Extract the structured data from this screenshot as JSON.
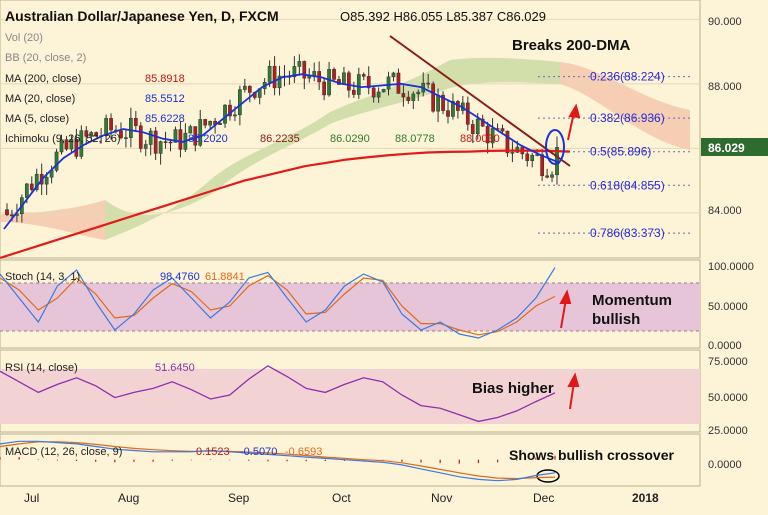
{
  "header": {
    "symbol": "Australian Dollar/Japanese Yen, D, FXCM",
    "ohlc": "O85.392  H86.055  L85.387  C86.029",
    "vol_label": "Vol (20)",
    "bb_label": "BB (20, close, 2)",
    "ma200_label": "MA (200, close)",
    "ma20_label": "MA (20, close)",
    "ma5_label": "MA (5, close)",
    "ichimoku_label": "Ichimoku (9, 26, 52, 26)"
  },
  "indicator_values": {
    "ma200": "85.8918",
    "ma20": "85.5512",
    "ma5": "85.6228",
    "ichimoku": [
      "85.2020",
      "86.2235",
      "86.0290",
      "88.0778",
      "88.0030"
    ]
  },
  "annotations": {
    "main": "Breaks 200-DMA",
    "stoch": "Momentum bullish",
    "rsi": "Bias higher",
    "macd": "Shows bullish crossover"
  },
  "colors": {
    "background": "#fdf3d6",
    "candle_up": "#2e7d32",
    "candle_down": "#b71c1c",
    "ma200": "#e11a1a",
    "ma20": "#1c31d6",
    "trendline": "#8b1a1a",
    "cloud_bull": "#c8d9a0",
    "cloud_bear": "#f3c1a8",
    "fib": "#2b2bd6",
    "arrow": "#e01818",
    "stoch_band": "#e6c5d9",
    "rsi_band": "#f2d2d2"
  },
  "chart_data": [
    {
      "type": "line",
      "panel": "price",
      "title": "Australian Dollar/Japanese Yen, D, FXCM",
      "yaxis_ticks": [
        "90.000",
        "88.000",
        "86.000",
        "84.000"
      ],
      "yrange": [
        82.6,
        90.6
      ],
      "xaxis_ticks": [
        "Jul",
        "Aug",
        "Sep",
        "Oct",
        "Nov",
        "Dec",
        "2018"
      ],
      "last_price": "86.029",
      "series": [
        {
          "name": "MA (200, close)",
          "values": [
            82.6,
            82.8,
            83.0,
            83.2,
            83.4,
            83.6,
            83.8,
            84.0,
            84.2,
            84.4,
            84.6,
            84.8,
            85.0,
            85.15,
            85.3,
            85.45,
            85.55,
            85.65,
            85.72,
            85.78,
            85.83,
            85.87,
            85.89,
            85.9,
            85.92,
            85.93,
            85.93,
            85.92,
            85.9
          ]
        },
        {
          "name": "MA (20, close)",
          "values": [
            83.5,
            84.3,
            85.1,
            85.7,
            86.1,
            86.4,
            86.6,
            86.5,
            86.3,
            86.2,
            86.4,
            86.9,
            87.4,
            87.9,
            88.2,
            88.3,
            88.2,
            88.0,
            87.9,
            87.95,
            88.0,
            87.9,
            87.6,
            87.3,
            86.9,
            86.5,
            86.1,
            85.8,
            85.55
          ]
        }
      ],
      "fib_levels": [
        {
          "label": "0.236(88.224)",
          "value": 88.224
        },
        {
          "label": "0.382(86.936)",
          "value": 86.936
        },
        {
          "label": "0.5(85.896)",
          "value": 85.896
        },
        {
          "label": "0.618(84.855)",
          "value": 84.855
        },
        {
          "label": "0.786(83.373)",
          "value": 83.373
        }
      ]
    },
    {
      "type": "line",
      "panel": "stoch",
      "label": "Stoch (14, 3, 1)",
      "value_labels": [
        "98.4760",
        "61.8841"
      ],
      "yaxis_ticks": [
        "100.0000",
        "50.0000",
        "0.0000"
      ],
      "yrange": [
        0,
        100
      ],
      "band": [
        20,
        80
      ],
      "series": [
        {
          "name": "%K",
          "values": [
            90,
            60,
            30,
            75,
            95,
            55,
            20,
            40,
            70,
            85,
            60,
            35,
            55,
            85,
            92,
            60,
            30,
            45,
            75,
            90,
            80,
            40,
            20,
            30,
            15,
            10,
            20,
            35,
            60,
            98
          ]
        },
        {
          "name": "%D",
          "values": [
            85,
            70,
            45,
            60,
            85,
            65,
            35,
            38,
            60,
            78,
            68,
            45,
            50,
            75,
            88,
            70,
            40,
            42,
            65,
            85,
            82,
            50,
            28,
            28,
            20,
            14,
            18,
            30,
            50,
            62
          ]
        }
      ]
    },
    {
      "type": "line",
      "panel": "rsi",
      "label": "RSI (14, close)",
      "value_label": "51.6450",
      "yaxis_ticks": [
        "75.0000",
        "50.0000",
        "25.0000"
      ],
      "yrange": [
        22,
        78
      ],
      "band": [
        30,
        70
      ],
      "series": [
        {
          "name": "RSI",
          "values": [
            68,
            60,
            52,
            58,
            63,
            57,
            48,
            52,
            55,
            60,
            54,
            47,
            50,
            62,
            72,
            64,
            55,
            52,
            58,
            63,
            60,
            50,
            42,
            40,
            35,
            30,
            33,
            38,
            45,
            51.6
          ]
        }
      ]
    },
    {
      "type": "line",
      "panel": "macd",
      "label": "MACD (12, 26, close, 9)",
      "value_labels": [
        "0.1523",
        "-0.5070",
        "-0.6593"
      ],
      "yaxis_ticks": [
        "0.0000"
      ],
      "yrange": [
        -1.0,
        0.9
      ],
      "series": [
        {
          "name": "MACD",
          "values": [
            0.6,
            0.7,
            0.7,
            0.65,
            0.6,
            0.5,
            0.4,
            0.35,
            0.3,
            0.3,
            0.3,
            0.35,
            0.3,
            0.25,
            0.2,
            0.15,
            0.1,
            0.05,
            0.0,
            -0.05,
            -0.1,
            -0.2,
            -0.35,
            -0.5,
            -0.65,
            -0.75,
            -0.8,
            -0.75,
            -0.6,
            -0.5
          ]
        },
        {
          "name": "Signal",
          "values": [
            0.5,
            0.6,
            0.68,
            0.68,
            0.65,
            0.58,
            0.5,
            0.43,
            0.38,
            0.34,
            0.32,
            0.33,
            0.32,
            0.29,
            0.26,
            0.21,
            0.16,
            0.1,
            0.05,
            0.0,
            -0.04,
            -0.12,
            -0.24,
            -0.37,
            -0.5,
            -0.62,
            -0.7,
            -0.72,
            -0.68,
            -0.66
          ]
        }
      ],
      "histogram": [
        0.1,
        0.1,
        0.02,
        -0.03,
        -0.05,
        -0.08,
        -0.1,
        -0.08,
        -0.08,
        -0.04,
        -0.02,
        0.02,
        -0.02,
        -0.04,
        -0.06,
        -0.06,
        -0.06,
        -0.05,
        -0.05,
        -0.05,
        -0.06,
        -0.08,
        -0.11,
        -0.13,
        -0.15,
        -0.13,
        -0.1,
        -0.03,
        0.08,
        0.15
      ]
    }
  ]
}
